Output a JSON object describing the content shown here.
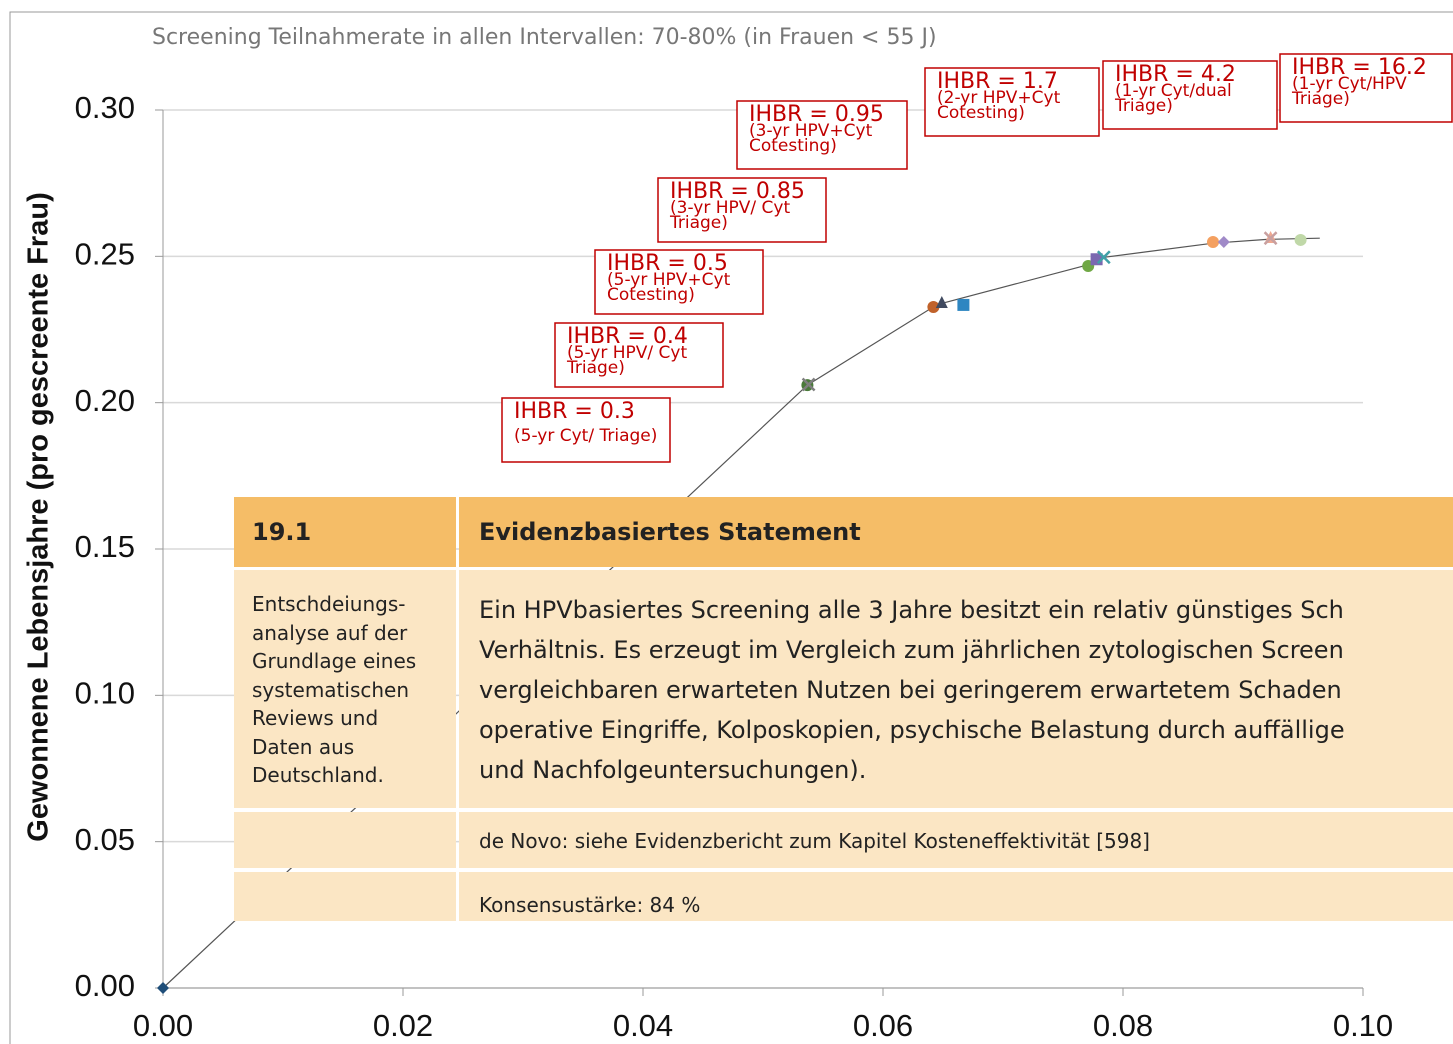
{
  "chart_data": {
    "type": "scatter",
    "subtitle": "Screening Teilnahmerate in allen Intervallen: 70-80% (in Frauen < 55 J)",
    "y_label": "Gewonnene Lebensjahre  (pro gescreente Frau)",
    "xlim": [
      0,
      0.1
    ],
    "ylim": [
      0,
      0.3
    ],
    "xticks": [
      {
        "value": 0,
        "label": "0.00"
      },
      0.02,
      0.04,
      0.06,
      0.08,
      {
        "value": 0.1,
        "label": "0.10"
      }
    ],
    "yticks": [
      {
        "value": 0,
        "label": "0.00"
      },
      0.05,
      {
        "value": 0.1,
        "label": "0.10"
      },
      0.15,
      {
        "value": 0.2,
        "label": "0.20"
      },
      0.25,
      {
        "value": 0.3,
        "label": "0.30"
      }
    ],
    "grid": true,
    "frontier": {
      "color": "#555555",
      "x": [
        0,
        0.0537,
        0.0645,
        0.077,
        0.0785,
        0.0875,
        0.092,
        0.0964
      ],
      "values": [
        0,
        0.206,
        0.2335,
        0.247,
        0.2497,
        0.2545,
        0.2558,
        0.2562
      ]
    },
    "series": [
      {
        "color": "#1f4e79",
        "marker": "diamond",
        "x": [
          0
        ],
        "values": [
          0
        ]
      },
      {
        "color": "#4a7a3a",
        "marker": "circle",
        "x": [
          0.0537
        ],
        "values": [
          0.206
        ]
      },
      {
        "color": "#7f7f7f",
        "marker": "x",
        "x": [
          0.0538
        ],
        "values": [
          0.2062
        ]
      },
      {
        "color": "#c0622b",
        "marker": "circle",
        "x": [
          0.0642
        ],
        "values": [
          0.2327
        ]
      },
      {
        "color": "#404a60",
        "marker": "triangle",
        "x": [
          0.0649
        ],
        "values": [
          0.2344
        ]
      },
      {
        "color": "#2e86c1",
        "marker": "square",
        "x": [
          0.0667
        ],
        "values": [
          0.2334
        ]
      },
      {
        "color": "#70a845",
        "marker": "circle",
        "x": [
          0.0771
        ],
        "values": [
          0.2467
        ]
      },
      {
        "color": "#7b68b0",
        "marker": "square",
        "x": [
          0.0778
        ],
        "values": [
          0.249
        ]
      },
      {
        "color": "#3fa0a8",
        "marker": "x",
        "x": [
          0.0784
        ],
        "values": [
          0.2497
        ]
      },
      {
        "color": "#f4a060",
        "marker": "circle",
        "x": [
          0.0875
        ],
        "values": [
          0.2549
        ]
      },
      {
        "color": "#a08ac8",
        "marker": "diamond",
        "x": [
          0.0884
        ],
        "values": [
          0.2549
        ]
      },
      {
        "color": "#f0a890",
        "marker": "triangle",
        "x": [
          0.0923
        ],
        "values": [
          0.2566
        ]
      },
      {
        "color": "#c8a0a0",
        "marker": "x",
        "x": [
          0.0923
        ],
        "values": [
          0.2562
        ]
      },
      {
        "color": "#c0d8a8",
        "marker": "circle",
        "x": [
          0.0948
        ],
        "values": [
          0.2556
        ]
      }
    ],
    "annotations": [
      {
        "lines": [
          "IHBR = 0.3",
          "(5-yr Cyt/ Triage)"
        ]
      },
      {
        "lines": [
          "IHBR = 0.4",
          "(5-yr HPV/ Cyt",
          "Triage)"
        ]
      },
      {
        "lines": [
          "IHBR = 0.5",
          "(5-yr HPV+Cyt",
          "Cotesting)"
        ]
      },
      {
        "lines": [
          "IHBR = 0.85",
          "(3-yr HPV/ Cyt",
          "Triage)"
        ]
      },
      {
        "lines": [
          "IHBR = 0.95",
          "(3-yr HPV+Cyt",
          "Cotesting)"
        ]
      },
      {
        "lines": [
          "IHBR = 1.7",
          "(2-yr HPV+Cyt",
          "Cotesting)"
        ]
      },
      {
        "lines": [
          "IHBR = 4.2",
          "(1-yr Cyt/dual",
          "Triage)"
        ]
      },
      {
        "lines": [
          "IHBR = 16.2",
          "(1-yr Cyt/HPV",
          "Triage)"
        ]
      }
    ]
  },
  "statement": {
    "number": "19.1",
    "heading": "Evidenzbasiertes Statement",
    "evidence_level": [
      "Entschdeiungs-",
      "analyse auf der",
      "Grundlage eines",
      "systematischen",
      "Reviews und",
      "Daten aus",
      "Deutschland."
    ],
    "text": [
      "Ein HPVbasiertes Screening alle 3 Jahre besitzt ein relativ günstiges Sch",
      "Verhältnis. Es erzeugt im Vergleich zum jährlichen zytologischen Screen",
      "vergleichbaren erwarteten Nutzen bei geringerem erwartetem Schaden",
      "operative Eingriffe, Kolposkopien, psychische Belastung durch auffällige",
      "und Nachfolgeuntersuchungen)."
    ],
    "source": "de Novo: siehe Evidenzbericht zum Kapitel Kosteneffektivität  [598]",
    "consensus": "Konsensustärke: 84 %"
  }
}
